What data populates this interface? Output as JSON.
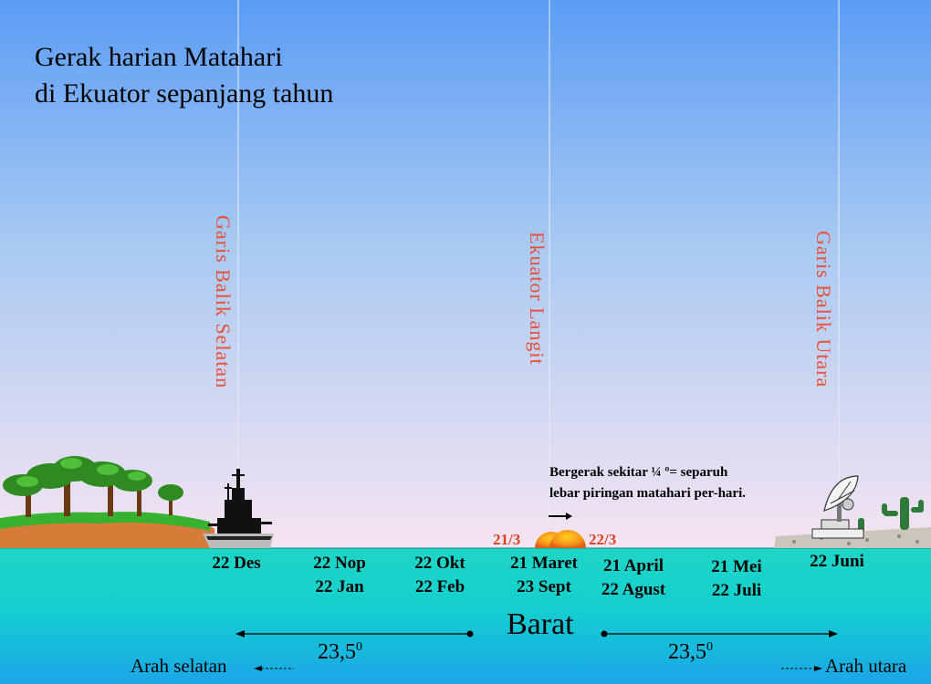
{
  "title": {
    "line1": "Gerak harian Matahari",
    "line2": "di Ekuator sepanjang tahun"
  },
  "lines": {
    "south": "Garis  Balik Selatan",
    "equator": "Ekuator  Langit",
    "north": "Garis  Balik Utara"
  },
  "note": {
    "line1": "Bergerak sekitar ¼ º= separuh",
    "line2": "lebar piringan  matahari per-hari."
  },
  "sun_labels": {
    "left": "21/3",
    "right": "22/3"
  },
  "dates": {
    "d1": [
      "22 Des"
    ],
    "d2": [
      "22 Nop",
      "22 Jan"
    ],
    "d3": [
      "22 Okt",
      "22 Feb"
    ],
    "d4": [
      "21 Maret",
      "23 Sept"
    ],
    "d5": [
      "21 April",
      "22 Agust"
    ],
    "d6": [
      "21 Mei",
      "22 Juli"
    ],
    "d7": [
      "22 Juni"
    ]
  },
  "west": "Barat",
  "angle": {
    "value": "23,5",
    "unit": "0"
  },
  "directions": {
    "south": "Arah selatan",
    "north": "Arah utara"
  },
  "colors": {
    "sky_top": "#5b9cf5",
    "sky_bottom": "#f6e4f2",
    "sea_top": "#1ed6c6",
    "sea_bottom": "#19a8e6",
    "label_red": "#e8503a",
    "sun": "#f08018"
  }
}
